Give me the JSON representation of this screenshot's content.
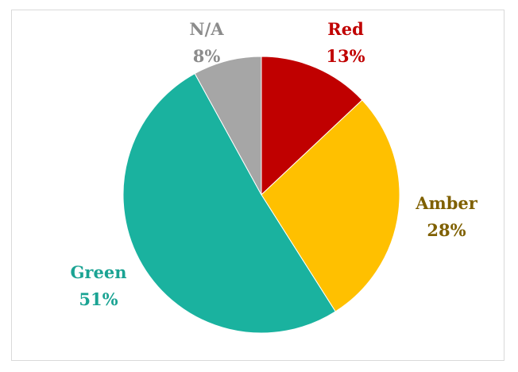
{
  "chart_data": {
    "type": "pie",
    "slices": [
      {
        "label": "Red",
        "value": 13,
        "display": "13%",
        "color": "#c00000",
        "label_color": "#c00000"
      },
      {
        "label": "Amber",
        "value": 28,
        "display": "28%",
        "color": "#ffc000",
        "label_color": "#7f6000"
      },
      {
        "label": "Green",
        "value": 51,
        "display": "51%",
        "color": "#1ab29f",
        "label_color": "#1aa393"
      },
      {
        "label": "N/A",
        "value": 8,
        "display": "8%",
        "color": "#a6a6a6",
        "label_color": "#8c8c8c"
      }
    ],
    "start_angle": "12 o'clock",
    "direction": "clockwise",
    "legend": "none",
    "data_labels": "category and percentage outside"
  }
}
